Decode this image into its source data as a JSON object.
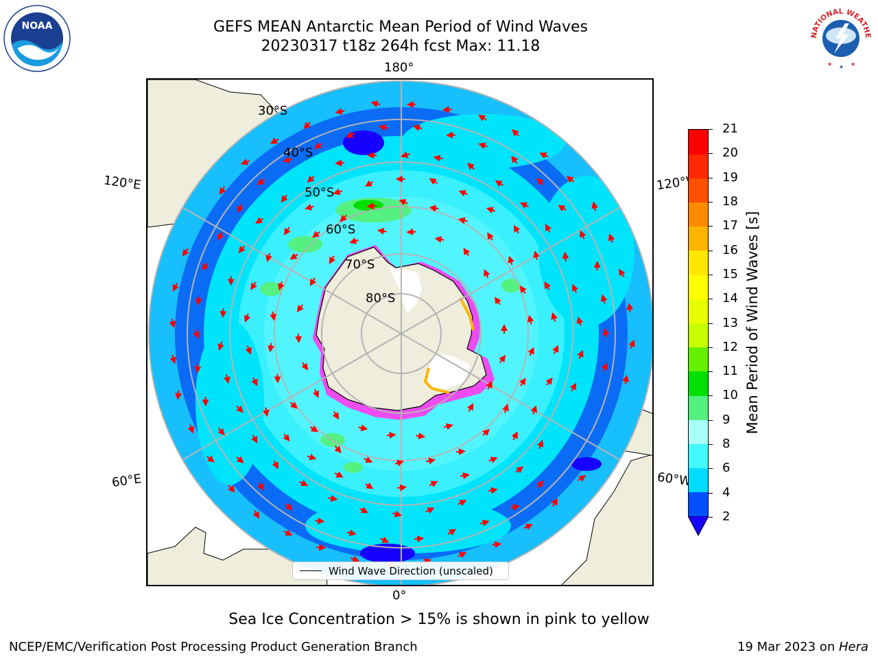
{
  "title": {
    "line1": "GEFS MEAN Antarctic Mean Period of Wind Waves",
    "line2": "20230317 t18z 264h fcst   Max: 11.18"
  },
  "map": {
    "longitude_labels": {
      "top": "180°",
      "bottom": "0°",
      "upper_left": "120°E",
      "upper_right": "120°W",
      "lower_left": "60°E",
      "lower_right": "60°W"
    },
    "latitude_labels": [
      "30°S",
      "40°S",
      "50°S",
      "60°S",
      "70°S",
      "80°S"
    ],
    "legend": "Wind Wave Direction (unscaled)"
  },
  "colorbar": {
    "label": "Mean Period of Wind Waves [s]",
    "ticks": [
      "2",
      "4",
      "6",
      "8",
      "9",
      "10",
      "11",
      "12",
      "13",
      "14",
      "15",
      "16",
      "17",
      "18",
      "19",
      "20",
      "21"
    ],
    "colors": [
      "#0050ff",
      "#00dcff",
      "#44f8ff",
      "#a8fff8",
      "#54f080",
      "#00e000",
      "#64f000",
      "#c8ff00",
      "#e8ff00",
      "#ffff00",
      "#ffe800",
      "#ffb400",
      "#ff8a00",
      "#ff5000",
      "#ff2800",
      "#ff0000"
    ],
    "extend_color": "#1800ff"
  },
  "colors": {
    "land": "#efeddc",
    "ocean_dark": "#0a6cf5",
    "ocean_cyan": "#00e4fb",
    "ocean_light": "#52f5fd",
    "ice_pink": "#ff38f0",
    "arrow": "#ff0000",
    "grid": "#b4b4b4"
  },
  "logos": {
    "noaa": "NOAA",
    "nws": "NATIONAL WEATHER SERVICE"
  },
  "note": "Sea Ice Concentration > 15% is shown in pink to yellow",
  "footer": {
    "left": "NCEP/EMC/Verification Post Processing Product Generation Branch",
    "right_text": "19 Mar 2023 on ",
    "right_host": "Hera"
  }
}
